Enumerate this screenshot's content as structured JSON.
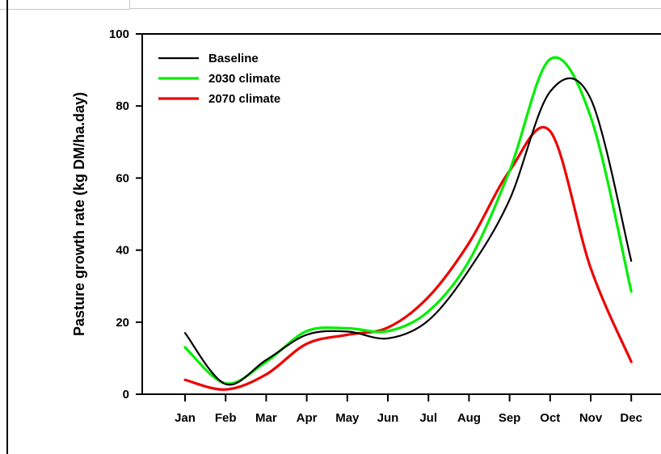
{
  "chart_data": {
    "type": "line",
    "title": "",
    "xlabel": "",
    "ylabel": "Pasture growth rate (kg DM/ha.day)",
    "categories": [
      "Jan",
      "Feb",
      "Mar",
      "Apr",
      "May",
      "Jun",
      "Jul",
      "Aug",
      "Sep",
      "Oct",
      "Nov",
      "Dec"
    ],
    "ylim": [
      0,
      100
    ],
    "yticks": [
      0,
      20,
      40,
      60,
      80,
      100
    ],
    "grid": false,
    "legend_position": "top-left",
    "series": [
      {
        "name": "Baseline",
        "color": "#000000",
        "values": [
          17.0,
          2.8,
          9.5,
          16.5,
          17.4,
          15.5,
          20.5,
          34.5,
          54.0,
          84.0,
          82.0,
          37.0
        ]
      },
      {
        "name": "2030 climate",
        "color": "#00ee00",
        "values": [
          13.0,
          3.0,
          9.0,
          17.5,
          18.3,
          17.5,
          23.0,
          37.0,
          62.0,
          93.0,
          77.0,
          28.5
        ]
      },
      {
        "name": "2070 climate",
        "color": "#ee0000",
        "values": [
          4.0,
          1.3,
          5.5,
          14.0,
          16.5,
          18.5,
          27.0,
          42.0,
          62.0,
          73.0,
          35.0,
          9.0
        ]
      }
    ]
  }
}
